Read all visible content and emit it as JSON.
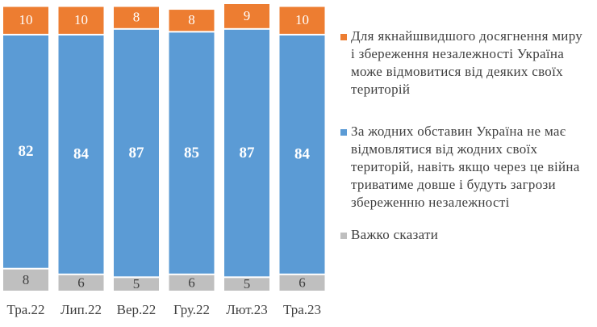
{
  "chart_data": {
    "type": "stacked_bar",
    "categories": [
      "Тра.22",
      "Лип.22",
      "Вер.22",
      "Гру.22",
      "Лют.23",
      "Тра.23"
    ],
    "series": [
      {
        "name": "Важко сказати",
        "color": "#bfbfbf",
        "values": [
          8,
          6,
          5,
          6,
          5,
          6
        ]
      },
      {
        "name": "За жодних обставин Україна не має відмовлятися від жодних своїх територій, навіть якщо через це війна триватиме довше і будуть загрози збереженню незалежності",
        "color": "#5b9bd5",
        "values": [
          82,
          84,
          87,
          85,
          87,
          84
        ]
      },
      {
        "name": "Для якнайшвидшого досягнення миру і збереження незалежності Україна може відмовитися від деяких своїх територій",
        "color": "#ed7d31",
        "values": [
          10,
          10,
          8,
          8,
          9,
          10
        ]
      }
    ],
    "legend": "right"
  }
}
